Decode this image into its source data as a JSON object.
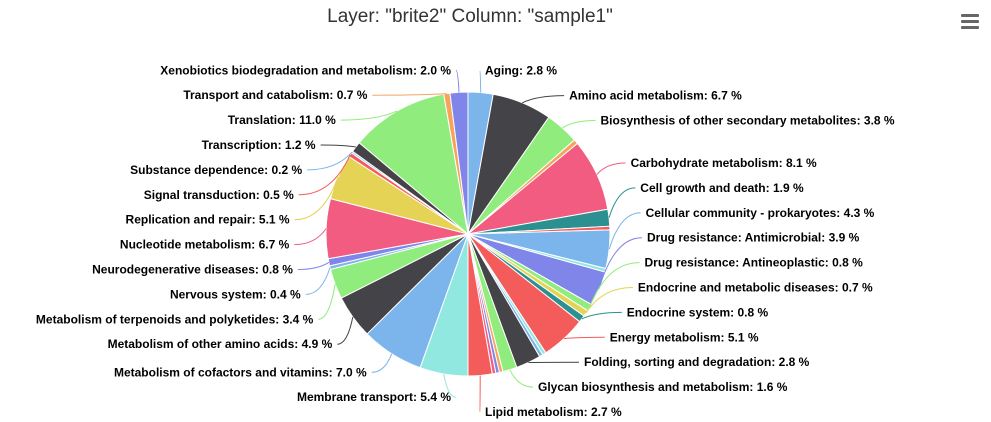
{
  "chart_data": {
    "type": "pie",
    "title": "Layer: \"brite2\" Column: \"sample1\"",
    "unit": "%",
    "slices": [
      {
        "label": "Aging",
        "value": 2.8,
        "color": "#7cb5ec"
      },
      {
        "label": "Amino acid metabolism",
        "value": 6.7,
        "color": "#434348"
      },
      {
        "label": "Biosynthesis of other secondary metabolites",
        "value": 3.8,
        "color": "#90ed7d"
      },
      {
        "label": "",
        "value": 0.5,
        "color": "#f7a35c"
      },
      {
        "label": "Carbohydrate metabolism",
        "value": 8.1,
        "color": "#f15c80"
      },
      {
        "label": "Cell growth and death",
        "value": 1.9,
        "color": "#2b908f"
      },
      {
        "label": "",
        "value": 0.4,
        "color": "#f45b5b"
      },
      {
        "label": "Cellular community - prokaryotes",
        "value": 4.3,
        "color": "#7cb5ec"
      },
      {
        "label": "",
        "value": 0.4,
        "color": "#91e8e1"
      },
      {
        "label": "Drug resistance: Antimicrobial",
        "value": 3.9,
        "color": "#8085e9"
      },
      {
        "label": "Drug resistance: Antineoplastic",
        "value": 0.8,
        "color": "#90ed7d"
      },
      {
        "label": "Endocrine and metabolic diseases",
        "value": 0.7,
        "color": "#e4d354"
      },
      {
        "label": "Endocrine system",
        "value": 0.8,
        "color": "#2b908f"
      },
      {
        "label": "Energy metabolism",
        "value": 5.1,
        "color": "#f45b5b"
      },
      {
        "label": "",
        "value": 0.4,
        "color": "#91e8e1"
      },
      {
        "label": "",
        "value": 0.4,
        "color": "#7cb5ec"
      },
      {
        "label": "Folding, sorting and degradation",
        "value": 2.8,
        "color": "#434348"
      },
      {
        "label": "Glycan biosynthesis and metabolism",
        "value": 1.6,
        "color": "#90ed7d"
      },
      {
        "label": "",
        "value": 0.4,
        "color": "#f7a35c"
      },
      {
        "label": "",
        "value": 0.4,
        "color": "#8085e9"
      },
      {
        "label": "",
        "value": 0.4,
        "color": "#f15c80"
      },
      {
        "label": "Lipid metabolism",
        "value": 2.7,
        "color": "#f45b5b"
      },
      {
        "label": "Membrane transport",
        "value": 5.4,
        "color": "#91e8e1"
      },
      {
        "label": "Metabolism of cofactors and vitamins",
        "value": 7.0,
        "color": "#7cb5ec"
      },
      {
        "label": "Metabolism of other amino acids",
        "value": 4.9,
        "color": "#434348"
      },
      {
        "label": "Metabolism of terpenoids and polyketides",
        "value": 3.4,
        "color": "#90ed7d"
      },
      {
        "label": "Nervous system",
        "value": 0.4,
        "color": "#7cb5ec"
      },
      {
        "label": "Neurodegenerative diseases",
        "value": 0.8,
        "color": "#8085e9"
      },
      {
        "label": "Nucleotide metabolism",
        "value": 6.7,
        "color": "#f15c80"
      },
      {
        "label": "Replication and repair",
        "value": 5.1,
        "color": "#e4d354"
      },
      {
        "label": "Signal transduction",
        "value": 0.5,
        "color": "#f45b5b"
      },
      {
        "label": "Substance dependence",
        "value": 0.2,
        "color": "#7cb5ec"
      },
      {
        "label": "Transcription",
        "value": 1.2,
        "color": "#434348"
      },
      {
        "label": "Translation",
        "value": 11.0,
        "color": "#90ed7d"
      },
      {
        "label": "Transport and catabolism",
        "value": 0.7,
        "color": "#f7a35c"
      },
      {
        "label": "Xenobiotics biodegradation and metabolism",
        "value": 2.0,
        "color": "#8085e9"
      }
    ]
  },
  "menu": {
    "icon": "hamburger-menu-icon"
  }
}
